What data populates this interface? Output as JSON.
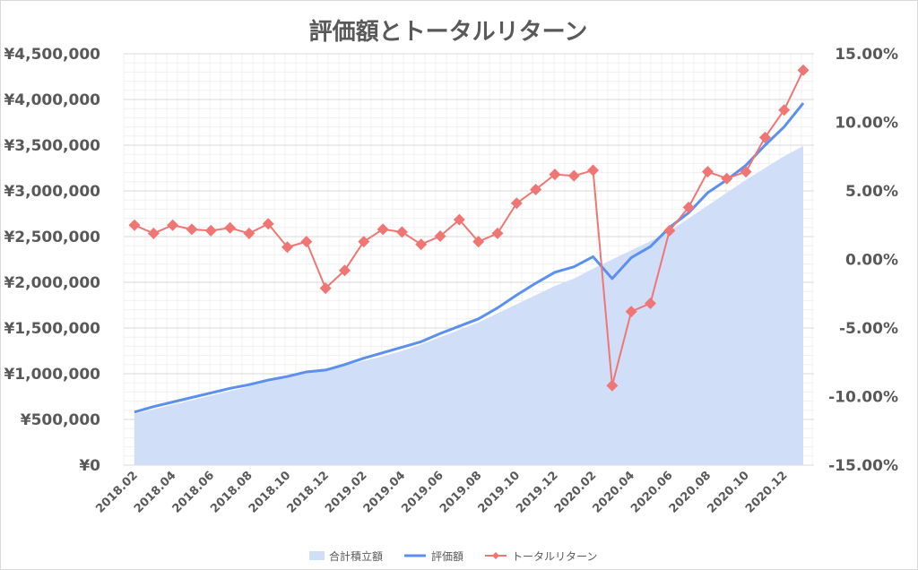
{
  "chart_data": {
    "type": "line",
    "title": "評価額とトータルリターン",
    "x": [
      "2018.02",
      "2018.03",
      "2018.04",
      "2018.05",
      "2018.06",
      "2018.07",
      "2018.08",
      "2018.09",
      "2018.10",
      "2018.11",
      "2018.12",
      "2019.01",
      "2019.02",
      "2019.03",
      "2019.04",
      "2019.05",
      "2019.06",
      "2019.07",
      "2019.08",
      "2019.09",
      "2019.10",
      "2019.11",
      "2019.12",
      "2020.01",
      "2020.02",
      "2020.03",
      "2020.04",
      "2020.05",
      "2020.06",
      "2020.07",
      "2020.08",
      "2020.09",
      "2020.10",
      "2020.11",
      "2020.12",
      "2021.01"
    ],
    "x_tick_labels": [
      "2018.02",
      "2018.04",
      "2018.06",
      "2018.08",
      "2018.10",
      "2018.12",
      "2019.02",
      "2019.04",
      "2019.06",
      "2019.08",
      "2019.10",
      "2019.12",
      "2020.02",
      "2020.04",
      "2020.06",
      "2020.08",
      "2020.10",
      "2020.12"
    ],
    "series": [
      {
        "name": "合計積立額",
        "kind": "area",
        "axis": "left",
        "color": "#d0def8",
        "values": [
          560000,
          610000,
          660000,
          710000,
          760000,
          810000,
          860000,
          910000,
          960000,
          1010000,
          1040000,
          1090000,
          1140000,
          1190000,
          1250000,
          1320000,
          1400000,
          1480000,
          1560000,
          1660000,
          1760000,
          1860000,
          1960000,
          2040000,
          2150000,
          2250000,
          2350000,
          2450000,
          2560000,
          2700000,
          2840000,
          2980000,
          3120000,
          3250000,
          3380000,
          3490000
        ]
      },
      {
        "name": "評価額",
        "kind": "line",
        "axis": "left",
        "color": "#5b8ff0",
        "values": [
          580000,
          640000,
          690000,
          740000,
          790000,
          840000,
          880000,
          930000,
          970000,
          1020000,
          1040000,
          1100000,
          1170000,
          1230000,
          1290000,
          1350000,
          1440000,
          1520000,
          1600000,
          1720000,
          1860000,
          1990000,
          2110000,
          2170000,
          2280000,
          2040000,
          2270000,
          2390000,
          2600000,
          2760000,
          2980000,
          3120000,
          3280000,
          3500000,
          3700000,
          3960000
        ]
      },
      {
        "name": "トータルリターン",
        "kind": "line-marker",
        "axis": "right",
        "color": "#ef7674",
        "values": [
          2.5,
          1.9,
          2.5,
          2.2,
          2.1,
          2.3,
          1.9,
          2.6,
          0.9,
          1.3,
          -2.1,
          -0.8,
          1.3,
          2.2,
          2.0,
          1.1,
          1.7,
          2.9,
          1.3,
          1.9,
          4.1,
          5.1,
          6.2,
          6.1,
          6.5,
          -9.2,
          -3.8,
          -3.2,
          2.1,
          3.8,
          6.4,
          5.9,
          6.4,
          8.9,
          10.9,
          13.8
        ]
      }
    ],
    "y_left": {
      "range": [
        0,
        4500000
      ],
      "ticks": [
        0,
        500000,
        1000000,
        1500000,
        2000000,
        2500000,
        3000000,
        3500000,
        4000000,
        4500000
      ],
      "tick_labels": [
        "¥0",
        "¥500,000",
        "¥1,000,000",
        "¥1,500,000",
        "¥2,000,000",
        "¥2,500,000",
        "¥3,000,000",
        "¥3,500,000",
        "¥4,000,000",
        "¥4,500,000"
      ]
    },
    "y_right": {
      "range": [
        -15,
        15
      ],
      "ticks": [
        -15,
        -10,
        -5,
        0,
        5,
        10,
        15
      ],
      "tick_labels": [
        "-15.00%",
        "-10.00%",
        "-5.00%",
        "0.00%",
        "5.00%",
        "10.00%",
        "15.00%"
      ]
    },
    "grid": "major-and-minor",
    "legend": "bottom"
  }
}
